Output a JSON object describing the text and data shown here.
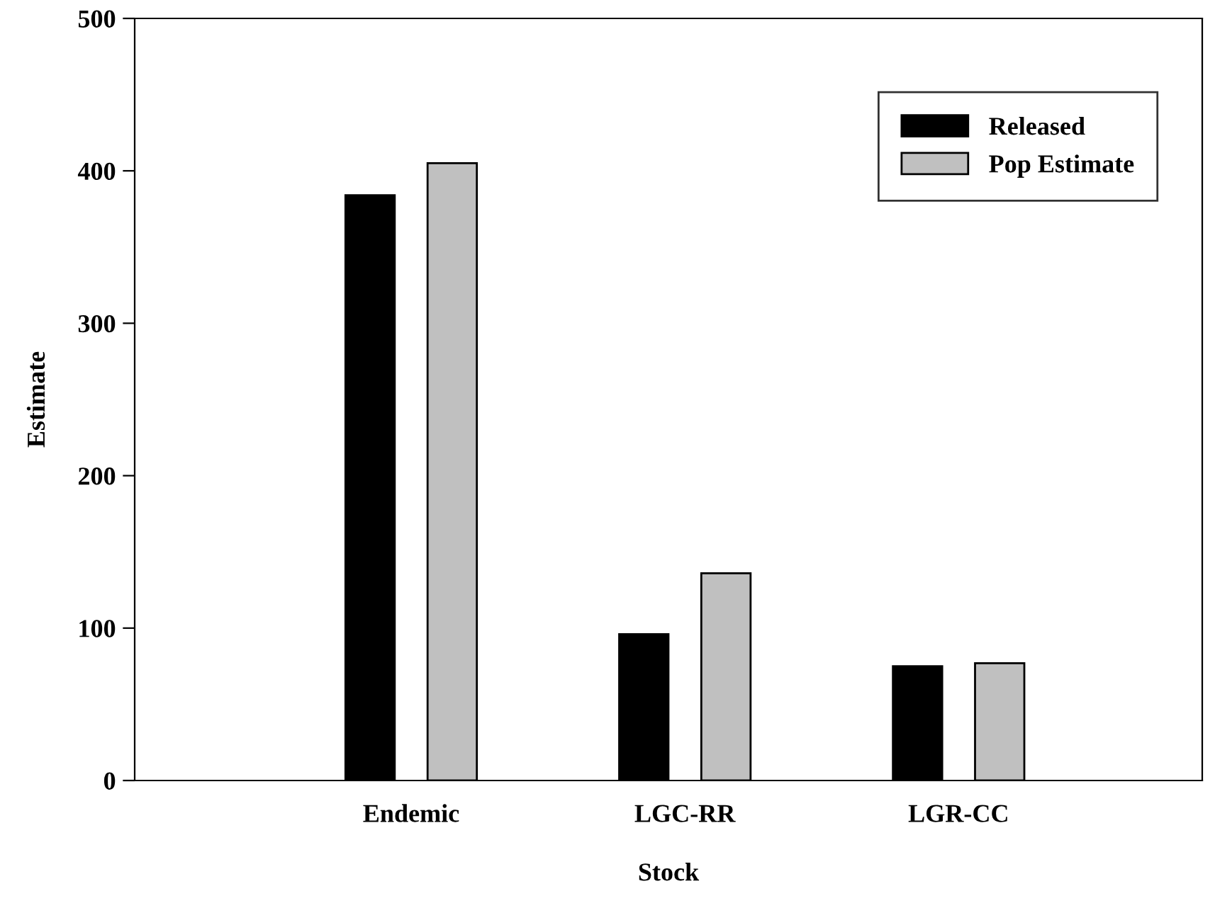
{
  "chart_data": {
    "type": "bar",
    "xlabel": "Stock",
    "ylabel": "Estimate",
    "categories": [
      "Endemic",
      "LGC-RR",
      "LGR-CC"
    ],
    "series": [
      {
        "name": "Released",
        "color": "#000000",
        "values": [
          384,
          96,
          75
        ]
      },
      {
        "name": "Pop Estimate",
        "color": "#c0c0c0",
        "values": [
          405,
          136,
          77
        ]
      }
    ],
    "ylim": [
      0,
      500
    ],
    "yticks": [
      0,
      100,
      200,
      300,
      400,
      500
    ],
    "grid": false,
    "legend": "top right"
  }
}
